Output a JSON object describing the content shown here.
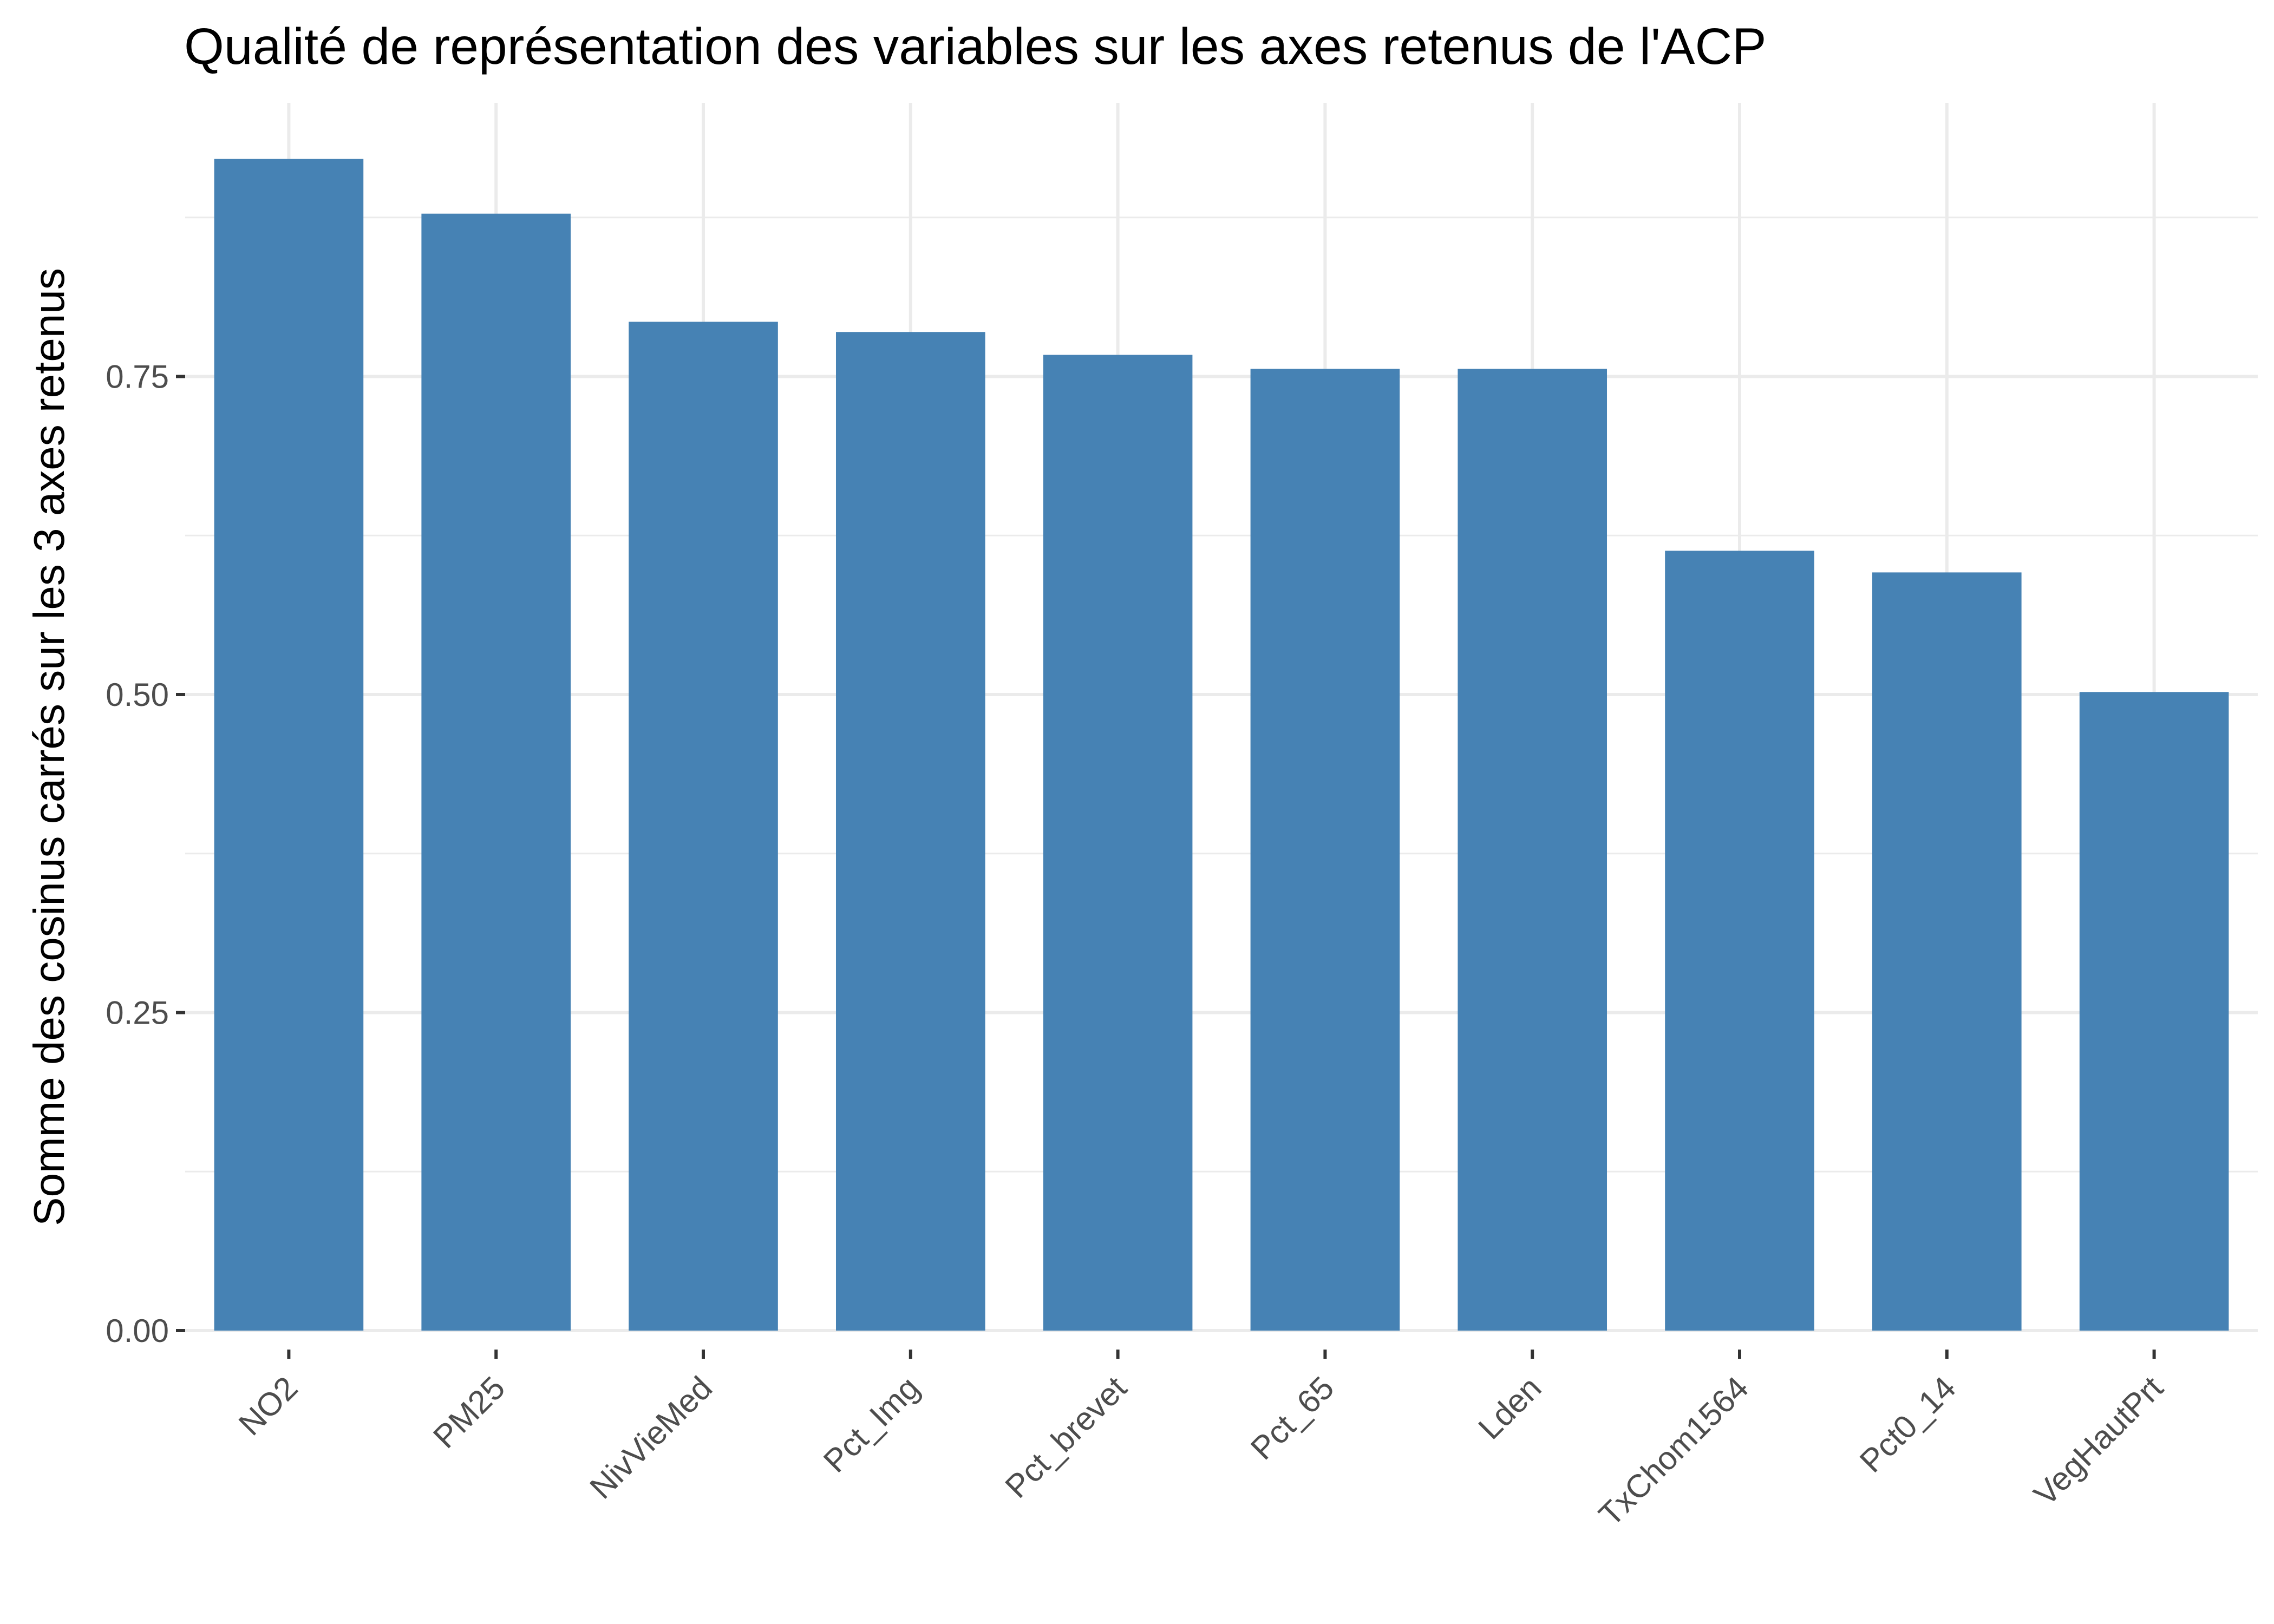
{
  "chart_data": {
    "type": "bar",
    "title": "Qualité de représentation des variables sur les axes retenus de l'ACP",
    "xlabel": "",
    "ylabel": "Somme des cosinus carrés sur les 3 axes retenus",
    "categories": [
      "NO2",
      "PM25",
      "NivVieMed",
      "Pct_Img",
      "Pct_brevet",
      "Pct_65",
      "Lden",
      "TxChom1564",
      "Pct0_14",
      "VegHautPrt"
    ],
    "values": [
      0.921,
      0.878,
      0.793,
      0.785,
      0.767,
      0.756,
      0.756,
      0.613,
      0.596,
      0.502
    ],
    "ylim": [
      0,
      0.92
    ],
    "yticks": [
      0,
      0.25,
      0.5,
      0.75
    ],
    "ytick_labels": [
      "0.00",
      "0.25",
      "0.50",
      "0.75"
    ],
    "grid": true,
    "bar_color": "#4682B4"
  }
}
